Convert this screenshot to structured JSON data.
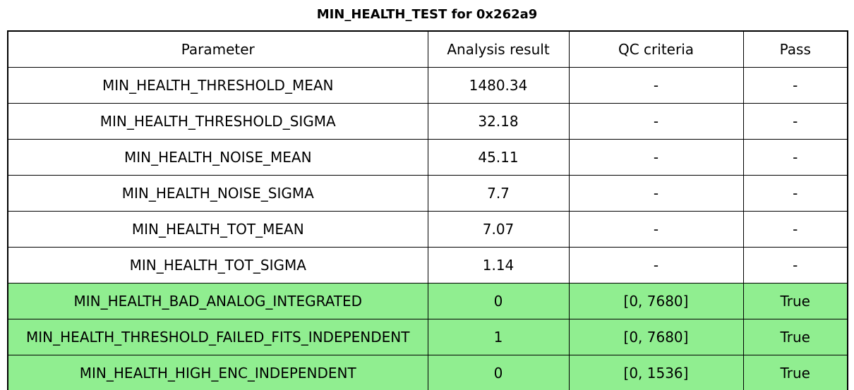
{
  "title": "MIN_HEALTH_TEST for 0x262a9",
  "colors": {
    "background": "#ffffff",
    "text": "#000000",
    "border": "#000000",
    "pass_row_bg": "#90ee90"
  },
  "chart_data": {
    "type": "table",
    "title": "MIN_HEALTH_TEST for 0x262a9",
    "columns": [
      "Parameter",
      "Analysis result",
      "QC criteria",
      "Pass"
    ],
    "rows": [
      {
        "parameter": "MIN_HEALTH_THRESHOLD_MEAN",
        "analysis_result": "1480.34",
        "qc_criteria": "-",
        "pass": "-",
        "highlighted": false
      },
      {
        "parameter": "MIN_HEALTH_THRESHOLD_SIGMA",
        "analysis_result": "32.18",
        "qc_criteria": "-",
        "pass": "-",
        "highlighted": false
      },
      {
        "parameter": "MIN_HEALTH_NOISE_MEAN",
        "analysis_result": "45.11",
        "qc_criteria": "-",
        "pass": "-",
        "highlighted": false
      },
      {
        "parameter": "MIN_HEALTH_NOISE_SIGMA",
        "analysis_result": "7.7",
        "qc_criteria": "-",
        "pass": "-",
        "highlighted": false
      },
      {
        "parameter": "MIN_HEALTH_TOT_MEAN",
        "analysis_result": "7.07",
        "qc_criteria": "-",
        "pass": "-",
        "highlighted": false
      },
      {
        "parameter": "MIN_HEALTH_TOT_SIGMA",
        "analysis_result": "1.14",
        "qc_criteria": "-",
        "pass": "-",
        "highlighted": false
      },
      {
        "parameter": "MIN_HEALTH_BAD_ANALOG_INTEGRATED",
        "analysis_result": "0",
        "qc_criteria": "[0, 7680]",
        "pass": "True",
        "highlighted": true
      },
      {
        "parameter": "MIN_HEALTH_THRESHOLD_FAILED_FITS_INDEPENDENT",
        "analysis_result": "1",
        "qc_criteria": "[0, 7680]",
        "pass": "True",
        "highlighted": true
      },
      {
        "parameter": "MIN_HEALTH_HIGH_ENC_INDEPENDENT",
        "analysis_result": "0",
        "qc_criteria": "[0, 1536]",
        "pass": "True",
        "highlighted": true
      }
    ]
  }
}
